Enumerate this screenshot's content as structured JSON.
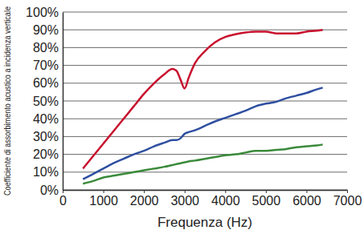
{
  "chart_data": {
    "type": "line",
    "x_label": "Frequenza (Hz)",
    "y_label": "Coefficiente di assorbimento acustico a incidenza verticale",
    "x": [
      500,
      750,
      1000,
      1250,
      1500,
      1750,
      2000,
      2250,
      2500,
      2700,
      2800,
      2900,
      3000,
      3100,
      3250,
      3500,
      3750,
      4000,
      4250,
      4500,
      4750,
      5000,
      5250,
      5500,
      5750,
      6000,
      6250,
      6400
    ],
    "series": [
      {
        "color": "#c8102e",
        "values": [
          12,
          19,
          26,
          33,
          40,
          47,
          54,
          60,
          65,
          68,
          67,
          62,
          57,
          63,
          71,
          78,
          83,
          86,
          87.5,
          88.5,
          89,
          89,
          88,
          88,
          88,
          89,
          89.5,
          90
        ]
      },
      {
        "color": "#2e4fa0",
        "values": [
          6,
          9,
          12,
          15,
          17.5,
          20,
          22,
          24.5,
          26.5,
          28,
          28,
          29,
          31.5,
          32.5,
          33.5,
          36,
          38.5,
          40.5,
          42.5,
          44.5,
          47,
          48.5,
          49.5,
          51.5,
          53,
          54.5,
          56.5,
          57.5
        ]
      },
      {
        "color": "#3a8a3a",
        "values": [
          3.5,
          5,
          7,
          8,
          9,
          10,
          11,
          12,
          13,
          14,
          14.5,
          15,
          15.5,
          16,
          16.5,
          17.5,
          18.5,
          19.5,
          20,
          21,
          22,
          22,
          22.5,
          23,
          24,
          24.5,
          25,
          25.5
        ]
      }
    ],
    "xlim": [
      0,
      7000
    ],
    "xticks": [
      0,
      1000,
      2000,
      3000,
      4000,
      5000,
      6000,
      7000
    ],
    "ylim": [
      0,
      100
    ],
    "yticks": [
      {
        "value": 0,
        "label": "0%"
      },
      {
        "value": 10,
        "label": "10%"
      },
      {
        "value": 20,
        "label": "20%"
      },
      {
        "value": 30,
        "label": "30%"
      },
      {
        "value": 40,
        "label": "40%"
      },
      {
        "value": 50,
        "label": "50%"
      },
      {
        "value": 60,
        "label": "60%"
      },
      {
        "value": 70,
        "label": "70%"
      },
      {
        "value": 80,
        "label": "80%"
      },
      {
        "value": 90,
        "label": "90%"
      },
      {
        "value": 100,
        "label": "100%"
      }
    ],
    "grid": true
  }
}
